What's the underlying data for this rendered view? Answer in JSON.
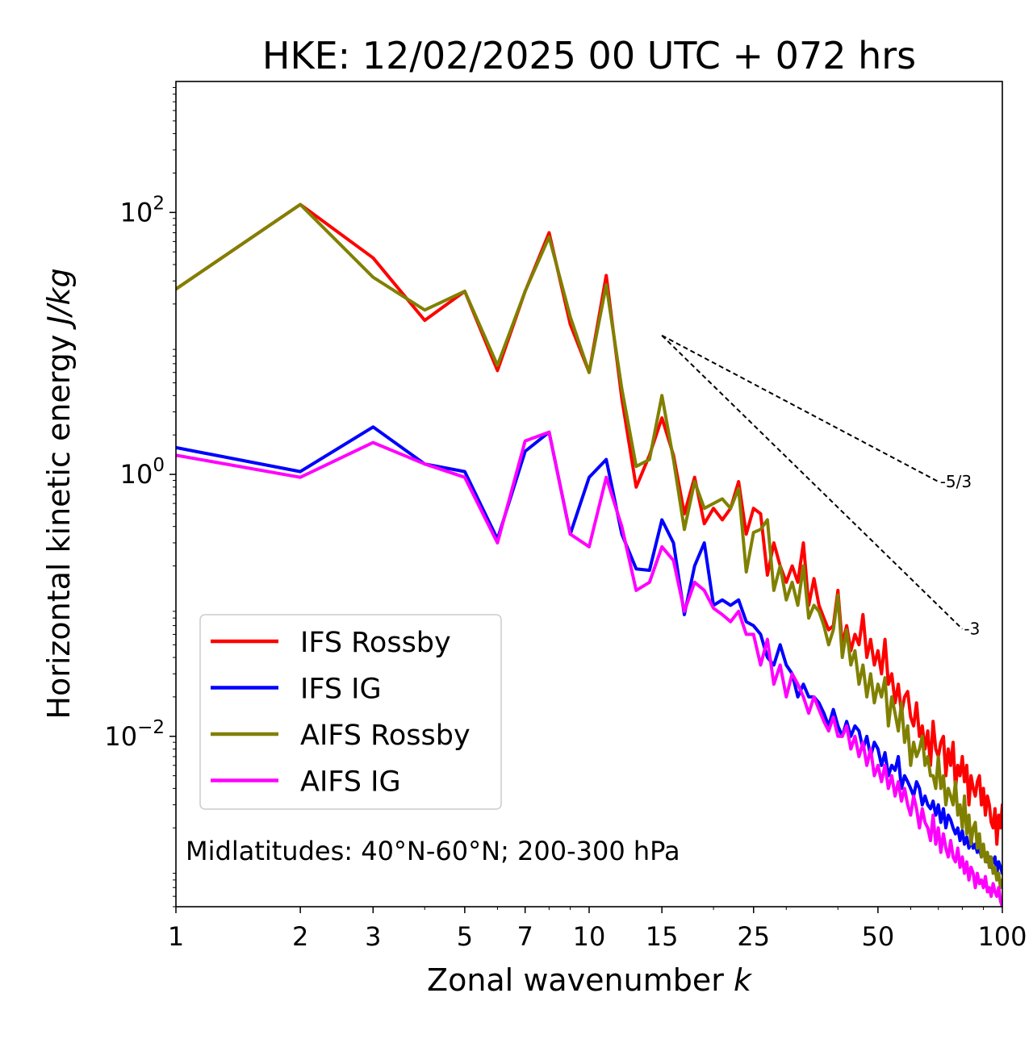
{
  "chart_data": {
    "type": "line",
    "title": "HKE: 12/02/2025 00 UTC + 072 hrs",
    "xlabel": "Zonal wavenumber",
    "xlabel_var": "k",
    "ylabel": "Horizontal kinetic energy",
    "ylabel_unit": "J/kg",
    "xscale": "log",
    "yscale": "log",
    "xlim": [
      1,
      100
    ],
    "ylim": [
      0.0005,
      1000
    ],
    "xticks": [
      1,
      2,
      3,
      5,
      7,
      10,
      15,
      25,
      50,
      100
    ],
    "xtick_labels": [
      "1",
      "2",
      "3",
      "5",
      "7",
      "10",
      "15",
      "25",
      "50",
      "100"
    ],
    "yticks": [
      0.01,
      1,
      100
    ],
    "ytick_labels": [
      {
        "base": "10",
        "exp": "−2"
      },
      {
        "base": "10",
        "exp": "0"
      },
      {
        "base": "10",
        "exp": "2"
      }
    ],
    "grid": false,
    "legend_position": "lower-left",
    "annotation": "Midlatitudes: 40°N-60°N; 200-300 hPa",
    "reference_slopes": [
      {
        "label": "-5/3",
        "slope": -1.667,
        "x": [
          15,
          70
        ],
        "y": [
          11.5,
          0.88
        ]
      },
      {
        "label": "-3",
        "slope": -3,
        "x": [
          15,
          80
        ],
        "y": [
          11.5,
          0.066
        ]
      }
    ],
    "series": [
      {
        "name": "IFS Rossby",
        "color": "#ff0000",
        "x": [
          1,
          2,
          3,
          4,
          5,
          6,
          7,
          8,
          9,
          10,
          11,
          12,
          13,
          14,
          15,
          16,
          17,
          18,
          19,
          20,
          21,
          22,
          23,
          24,
          25,
          26,
          27,
          28,
          29,
          30,
          31,
          32,
          33,
          34,
          35,
          36,
          37,
          38,
          39,
          40,
          41,
          42,
          43,
          44,
          45,
          46,
          47,
          48,
          49,
          50,
          51,
          52,
          53,
          54,
          55,
          56,
          57,
          58,
          59,
          60,
          61,
          62,
          63,
          64,
          65,
          66,
          67,
          68,
          69,
          70,
          71,
          72,
          73,
          74,
          75,
          76,
          77,
          78,
          79,
          80,
          81,
          82,
          83,
          84,
          85,
          86,
          87,
          88,
          89,
          90,
          91,
          92,
          93,
          94,
          95,
          96,
          97,
          98,
          99,
          100
        ],
        "y": [
          26,
          115,
          45,
          15,
          25,
          6.2,
          25,
          70,
          14,
          6,
          33,
          3.8,
          0.8,
          1.4,
          2.7,
          1.4,
          0.5,
          0.95,
          0.42,
          0.55,
          0.45,
          0.55,
          0.88,
          0.35,
          0.55,
          0.5,
          0.17,
          0.3,
          0.2,
          0.15,
          0.2,
          0.15,
          0.3,
          0.1,
          0.16,
          0.1,
          0.08,
          0.065,
          0.07,
          0.13,
          0.05,
          0.07,
          0.045,
          0.06,
          0.05,
          0.085,
          0.04,
          0.055,
          0.035,
          0.045,
          0.03,
          0.055,
          0.025,
          0.03,
          0.018,
          0.025,
          0.015,
          0.02,
          0.022,
          0.014,
          0.012,
          0.018,
          0.01,
          0.012,
          0.008,
          0.011,
          0.006,
          0.013,
          0.008,
          0.007,
          0.009,
          0.01,
          0.005,
          0.008,
          0.006,
          0.009,
          0.004,
          0.006,
          0.005,
          0.007,
          0.0045,
          0.006,
          0.003,
          0.005,
          0.004,
          0.0035,
          0.0045,
          0.005,
          0.003,
          0.004,
          0.0025,
          0.0035,
          0.003,
          0.0022,
          0.002,
          0.0028,
          0.0015,
          0.0025,
          0.002,
          0.003
        ]
      },
      {
        "name": "IFS IG",
        "color": "#0000ff",
        "x": [
          1,
          2,
          3,
          4,
          5,
          6,
          7,
          8,
          9,
          10,
          11,
          12,
          13,
          14,
          15,
          16,
          17,
          18,
          19,
          20,
          21,
          22,
          23,
          24,
          25,
          26,
          27,
          28,
          29,
          30,
          31,
          32,
          33,
          34,
          35,
          36,
          37,
          38,
          39,
          40,
          41,
          42,
          43,
          44,
          45,
          46,
          47,
          48,
          49,
          50,
          51,
          52,
          53,
          54,
          55,
          56,
          57,
          58,
          59,
          60,
          61,
          62,
          63,
          64,
          65,
          66,
          67,
          68,
          69,
          70,
          71,
          72,
          73,
          74,
          75,
          76,
          77,
          78,
          79,
          80,
          81,
          82,
          83,
          84,
          85,
          86,
          87,
          88,
          89,
          90,
          91,
          92,
          93,
          94,
          95,
          96,
          97,
          98,
          99,
          100
        ],
        "y": [
          1.6,
          1.05,
          2.3,
          1.2,
          1.05,
          0.32,
          1.5,
          2.1,
          0.35,
          0.95,
          1.3,
          0.35,
          0.19,
          0.185,
          0.45,
          0.3,
          0.085,
          0.2,
          0.3,
          0.1,
          0.11,
          0.1,
          0.11,
          0.075,
          0.07,
          0.06,
          0.04,
          0.035,
          0.05,
          0.035,
          0.03,
          0.02,
          0.025,
          0.02,
          0.02,
          0.018,
          0.015,
          0.012,
          0.016,
          0.012,
          0.01,
          0.013,
          0.01,
          0.012,
          0.011,
          0.008,
          0.01,
          0.007,
          0.009,
          0.008,
          0.006,
          0.0075,
          0.005,
          0.006,
          0.0055,
          0.007,
          0.004,
          0.005,
          0.0045,
          0.004,
          0.0035,
          0.0045,
          0.004,
          0.003,
          0.0035,
          0.003,
          0.0028,
          0.0032,
          0.0025,
          0.003,
          0.0022,
          0.0028,
          0.002,
          0.0025,
          0.0023,
          0.002,
          0.0018,
          0.002,
          0.0016,
          0.0019,
          0.0015,
          0.0017,
          0.0014,
          0.0016,
          0.0014,
          0.0015,
          0.0013,
          0.0014,
          0.0012,
          0.0013,
          0.0012,
          0.0011,
          0.0012,
          0.001,
          0.0011,
          0.0012,
          0.0009,
          0.0011,
          0.001,
          0.0009
        ]
      },
      {
        "name": "AIFS Rossby",
        "color": "#808000",
        "x": [
          1,
          2,
          3,
          4,
          5,
          6,
          7,
          8,
          9,
          10,
          11,
          12,
          13,
          14,
          15,
          16,
          17,
          18,
          19,
          20,
          21,
          22,
          23,
          24,
          25,
          26,
          27,
          28,
          29,
          30,
          31,
          32,
          33,
          34,
          35,
          36,
          37,
          38,
          39,
          40,
          41,
          42,
          43,
          44,
          45,
          46,
          47,
          48,
          49,
          50,
          51,
          52,
          53,
          54,
          55,
          56,
          57,
          58,
          59,
          60,
          61,
          62,
          63,
          64,
          65,
          66,
          67,
          68,
          69,
          70,
          71,
          72,
          73,
          74,
          75,
          76,
          77,
          78,
          79,
          80,
          81,
          82,
          83,
          84,
          85,
          86,
          87,
          88,
          89,
          90,
          91,
          92,
          93,
          94,
          95,
          96,
          97,
          98,
          99,
          100
        ],
        "y": [
          26,
          115,
          32,
          18,
          25,
          6.8,
          25,
          65,
          16,
          6,
          28,
          4.5,
          1.15,
          1.3,
          4,
          1.3,
          0.38,
          0.88,
          0.55,
          0.6,
          0.65,
          0.55,
          0.78,
          0.18,
          0.36,
          0.38,
          0.45,
          0.13,
          0.2,
          0.11,
          0.15,
          0.1,
          0.2,
          0.08,
          0.1,
          0.09,
          0.07,
          0.05,
          0.065,
          0.12,
          0.04,
          0.065,
          0.035,
          0.045,
          0.025,
          0.035,
          0.02,
          0.03,
          0.018,
          0.025,
          0.02,
          0.028,
          0.012,
          0.02,
          0.015,
          0.011,
          0.018,
          0.009,
          0.012,
          0.006,
          0.009,
          0.007,
          0.008,
          0.01,
          0.006,
          0.007,
          0.005,
          0.005,
          0.004,
          0.007,
          0.004,
          0.005,
          0.003,
          0.004,
          0.0035,
          0.003,
          0.0045,
          0.0025,
          0.003,
          0.002,
          0.0035,
          0.0018,
          0.0025,
          0.0015,
          0.002,
          0.0022,
          0.0014,
          0.0018,
          0.0012,
          0.0015,
          0.0011,
          0.0013,
          0.001,
          0.0012,
          0.0009,
          0.001,
          0.0008,
          0.0009,
          0.0007,
          0.0008
        ]
      },
      {
        "name": "AIFS IG",
        "color": "#ff00ff",
        "x": [
          1,
          2,
          3,
          4,
          5,
          6,
          7,
          8,
          9,
          10,
          11,
          12,
          13,
          14,
          15,
          16,
          17,
          18,
          19,
          20,
          21,
          22,
          23,
          24,
          25,
          26,
          27,
          28,
          29,
          30,
          31,
          32,
          33,
          34,
          35,
          36,
          37,
          38,
          39,
          40,
          41,
          42,
          43,
          44,
          45,
          46,
          47,
          48,
          49,
          50,
          51,
          52,
          53,
          54,
          55,
          56,
          57,
          58,
          59,
          60,
          61,
          62,
          63,
          64,
          65,
          66,
          67,
          68,
          69,
          70,
          71,
          72,
          73,
          74,
          75,
          76,
          77,
          78,
          79,
          80,
          81,
          82,
          83,
          84,
          85,
          86,
          87,
          88,
          89,
          90,
          91,
          92,
          93,
          94,
          95,
          96,
          97,
          98,
          99,
          100
        ],
        "y": [
          1.4,
          0.95,
          1.75,
          1.2,
          0.95,
          0.3,
          1.8,
          2.1,
          0.35,
          0.28,
          0.95,
          0.4,
          0.13,
          0.15,
          0.28,
          0.22,
          0.09,
          0.15,
          0.13,
          0.095,
          0.085,
          0.075,
          0.09,
          0.06,
          0.06,
          0.035,
          0.055,
          0.025,
          0.035,
          0.02,
          0.03,
          0.025,
          0.02,
          0.015,
          0.02,
          0.016,
          0.013,
          0.011,
          0.014,
          0.01,
          0.01,
          0.012,
          0.008,
          0.01,
          0.007,
          0.009,
          0.006,
          0.008,
          0.005,
          0.006,
          0.0045,
          0.006,
          0.004,
          0.005,
          0.0035,
          0.0045,
          0.0032,
          0.004,
          0.003,
          0.0025,
          0.0035,
          0.0028,
          0.002,
          0.0028,
          0.0022,
          0.002,
          0.0016,
          0.0025,
          0.0015,
          0.002,
          0.0013,
          0.0018,
          0.0014,
          0.0012,
          0.0016,
          0.0012,
          0.0011,
          0.0014,
          0.001,
          0.0012,
          0.0009,
          0.0011,
          0.0008,
          0.001,
          0.0009,
          0.0007,
          0.0009,
          0.00075,
          0.0008,
          0.0007,
          0.00085,
          0.00065,
          0.0007,
          0.0006,
          0.00075,
          0.00065,
          0.0006,
          0.0007,
          0.00055,
          0.0005
        ]
      }
    ]
  }
}
